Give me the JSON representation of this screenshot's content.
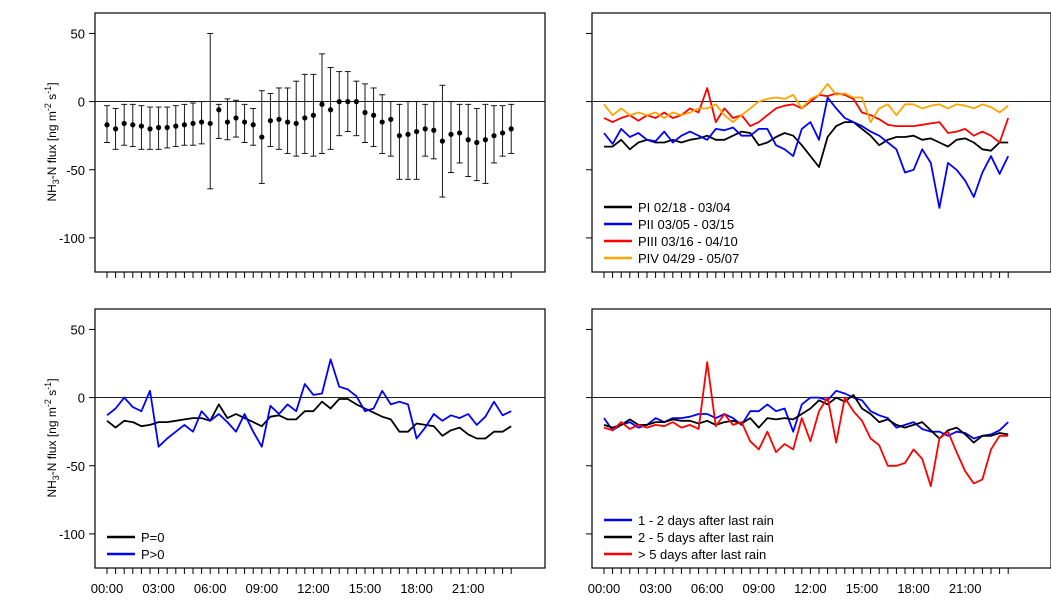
{
  "ylabel_prefix": "NH",
  "ylabel_sub": "3",
  "ylabel_mid": "-N flux [ng m",
  "ylabel_sup1": "-2",
  "ylabel_s": " s",
  "ylabel_sup2": "-1",
  "ylabel_end": "]",
  "chart_data": [
    {
      "type": "scatter",
      "panel": "top-left",
      "x": [
        "00:00",
        "00:30",
        "01:00",
        "01:30",
        "02:00",
        "02:30",
        "03:00",
        "03:30",
        "04:00",
        "04:30",
        "05:00",
        "05:30",
        "06:00",
        "06:30",
        "07:00",
        "07:30",
        "08:00",
        "08:30",
        "09:00",
        "09:30",
        "10:00",
        "10:30",
        "11:00",
        "11:30",
        "12:00",
        "12:30",
        "13:00",
        "13:30",
        "14:00",
        "14:30",
        "15:00",
        "15:30",
        "16:00",
        "16:30",
        "17:00",
        "17:30",
        "18:00",
        "18:30",
        "19:00",
        "19:30",
        "20:00",
        "20:30",
        "21:00",
        "21:30",
        "22:00",
        "22:30",
        "23:00",
        "23:30"
      ],
      "series": [
        {
          "values": [
            -17,
            -20,
            -16,
            -17,
            -18,
            -20,
            -19,
            -19,
            -18,
            -17,
            -16,
            -15,
            -16,
            -6,
            -15,
            -12,
            -15,
            -17,
            -26,
            -14,
            -13,
            -15,
            -16,
            -12,
            -10,
            -2,
            -6,
            0,
            0,
            0,
            -8,
            -10,
            -15,
            -13,
            -25,
            -24,
            -22,
            -20,
            -21,
            -29,
            -24,
            -23,
            -28,
            -30,
            -28,
            -25,
            -23,
            -20
          ],
          "err_low": [
            -30,
            -35,
            -32,
            -33,
            -35,
            -35,
            -35,
            -34,
            -33,
            -32,
            -32,
            -31,
            -64,
            -27,
            -28,
            -26,
            -30,
            -32,
            -60,
            -33,
            -35,
            -38,
            -40,
            -38,
            -40,
            -38,
            -35,
            -25,
            -22,
            -25,
            -30,
            -33,
            -38,
            -40,
            -57,
            -57,
            -57,
            -40,
            -42,
            -70,
            -52,
            -45,
            -55,
            -58,
            -60,
            -45,
            -40,
            -38
          ],
          "err_high": [
            -3,
            -5,
            -2,
            -2,
            -3,
            -4,
            -4,
            -4,
            -3,
            -2,
            -1,
            0,
            50,
            -2,
            2,
            1,
            -2,
            -5,
            8,
            6,
            10,
            10,
            15,
            20,
            20,
            35,
            25,
            22,
            22,
            15,
            13,
            10,
            5,
            0,
            -2,
            0,
            0,
            -2,
            0,
            12,
            0,
            -2,
            -2,
            -5,
            -2,
            -3,
            -3,
            -2
          ]
        }
      ],
      "ylim": [
        -125,
        65
      ],
      "yticks": [
        50,
        0,
        -50,
        -100
      ],
      "reference_line": 0,
      "xtick_labels_visible": false,
      "grid": false
    },
    {
      "type": "line",
      "panel": "top-right",
      "legend_position": "bottom-left",
      "series": [
        {
          "name": "PI 02/18 - 03/04",
          "color": "#000000",
          "values": [
            -33,
            -33,
            -28,
            -35,
            -30,
            -28,
            -30,
            -30,
            -28,
            -30,
            -28,
            -27,
            -25,
            -28,
            -28,
            -25,
            -22,
            -23,
            -32,
            -30,
            -26,
            -23,
            -25,
            -32,
            -40,
            -48,
            -26,
            -18,
            -15,
            -15,
            -20,
            -25,
            -32,
            -28,
            -26,
            -26,
            -25,
            -28,
            -27,
            -30,
            -33,
            -28,
            -27,
            -30,
            -35,
            -36,
            -30,
            -30
          ]
        },
        {
          "name": "PII 03/05 - 03/15",
          "color": "#0000ff",
          "values": [
            -23,
            -31,
            -20,
            -26,
            -23,
            -28,
            -29,
            -22,
            -30,
            -25,
            -22,
            -25,
            -28,
            -20,
            -21,
            -19,
            -25,
            -25,
            -20,
            -20,
            -32,
            -35,
            -40,
            -20,
            -15,
            -28,
            3,
            -5,
            -12,
            -15,
            -18,
            -22,
            -25,
            -30,
            -35,
            -52,
            -50,
            -35,
            -45,
            -78,
            -45,
            -50,
            -58,
            -70,
            -52,
            -40,
            -53,
            -40
          ]
        },
        {
          "name": "PIII 03/16 - 04/10",
          "color": "#ff0000",
          "values": [
            -12,
            -15,
            -12,
            -10,
            -14,
            -10,
            -12,
            -8,
            -12,
            -10,
            -5,
            -8,
            10,
            -15,
            -5,
            -12,
            -10,
            -18,
            -15,
            -10,
            -5,
            -3,
            -2,
            -5,
            0,
            5,
            4,
            6,
            5,
            2,
            -8,
            -10,
            -13,
            -17,
            -18,
            -18,
            -18,
            -17,
            -16,
            -15,
            -23,
            -22,
            -20,
            -25,
            -22,
            -25,
            -30,
            -12
          ]
        },
        {
          "name": "PIV 04/29 - 05/07",
          "color": "#ffa500",
          "values": [
            -2,
            -10,
            -5,
            -10,
            -8,
            -10,
            -8,
            -12,
            -8,
            -10,
            -8,
            -5,
            -5,
            -2,
            -10,
            -15,
            -10,
            -5,
            0,
            2,
            3,
            2,
            5,
            -5,
            2,
            5,
            13,
            5,
            6,
            3,
            3,
            -15,
            -5,
            -2,
            -10,
            -2,
            -2,
            -5,
            -3,
            -2,
            -5,
            -2,
            -3,
            -5,
            -2,
            -4,
            -8,
            -3
          ]
        }
      ],
      "ylim": [
        -125,
        65
      ],
      "reference_line": 0,
      "grid": false
    },
    {
      "type": "line",
      "panel": "bottom-left",
      "legend_position": "bottom-left",
      "xtick_labels": [
        "00:00",
        "03:00",
        "06:00",
        "09:00",
        "12:00",
        "15:00",
        "18:00",
        "21:00"
      ],
      "series": [
        {
          "name": "P=0",
          "color": "#000000",
          "values": [
            -17,
            -22,
            -17,
            -18,
            -21,
            -20,
            -18,
            -18,
            -17,
            -16,
            -15,
            -15,
            -17,
            -5,
            -15,
            -12,
            -15,
            -18,
            -21,
            -14,
            -13,
            -16,
            -16,
            -10,
            -10,
            -3,
            -8,
            -1,
            -1,
            -5,
            -8,
            -11,
            -14,
            -16,
            -25,
            -25,
            -19,
            -20,
            -21,
            -28,
            -24,
            -22,
            -27,
            -30,
            -30,
            -25,
            -25,
            -21
          ]
        },
        {
          "name": "P>0",
          "color": "#0000ff",
          "values": [
            -13,
            -8,
            0,
            -7,
            -10,
            5,
            -36,
            -30,
            -25,
            -20,
            -25,
            -10,
            -17,
            -12,
            -18,
            -25,
            -12,
            -25,
            -36,
            -6,
            -12,
            -5,
            -10,
            10,
            2,
            3,
            28,
            8,
            6,
            1,
            -10,
            -8,
            5,
            -5,
            -3,
            -5,
            -30,
            -22,
            -12,
            -17,
            -13,
            -15,
            -12,
            -20,
            -14,
            -3,
            -13,
            -10
          ]
        }
      ],
      "ylim": [
        -125,
        65
      ],
      "yticks": [
        50,
        0,
        -50,
        -100
      ],
      "reference_line": 0,
      "grid": false
    },
    {
      "type": "line",
      "panel": "bottom-right",
      "legend_position": "bottom-left",
      "xtick_labels": [
        "00:00",
        "03:00",
        "06:00",
        "09:00",
        "12:00",
        "15:00",
        "18:00",
        "21:00"
      ],
      "series": [
        {
          "name": "1 - 2 days after last rain",
          "color": "#0000ff",
          "values": [
            -15,
            -24,
            -20,
            -18,
            -22,
            -20,
            -15,
            -18,
            -15,
            -15,
            -14,
            -12,
            -12,
            -15,
            -12,
            -15,
            -20,
            -10,
            -10,
            -5,
            -10,
            -8,
            -25,
            -5,
            0,
            0,
            -2,
            5,
            3,
            0,
            -2,
            -10,
            -13,
            -15,
            -22,
            -20,
            -18,
            -23,
            -25,
            -25,
            -28,
            -25,
            -26,
            -30,
            -28,
            -27,
            -24,
            -18
          ]
        },
        {
          "name": "2 - 5 days after last rain",
          "color": "#000000",
          "values": [
            -20,
            -22,
            -20,
            -16,
            -20,
            -20,
            -18,
            -18,
            -16,
            -17,
            -17,
            -19,
            -17,
            -20,
            -18,
            -17,
            -19,
            -15,
            -22,
            -15,
            -16,
            -15,
            -16,
            -12,
            -8,
            -2,
            -5,
            0,
            -3,
            2,
            -8,
            -12,
            -18,
            -16,
            -20,
            -22,
            -20,
            -18,
            -24,
            -30,
            -24,
            -22,
            -27,
            -33,
            -28,
            -28,
            -26,
            -27
          ]
        },
        {
          "name": "> 5 days after last rain",
          "color": "#ff0000",
          "values": [
            -22,
            -24,
            -18,
            -23,
            -20,
            -22,
            -20,
            -21,
            -18,
            -22,
            -20,
            -23,
            26,
            -21,
            -12,
            -20,
            -18,
            -32,
            -38,
            -25,
            -40,
            -34,
            -38,
            -15,
            -32,
            -10,
            0,
            -33,
            0,
            -10,
            -17,
            -30,
            -35,
            -50,
            -50,
            -48,
            -38,
            -45,
            -65,
            -30,
            -25,
            -40,
            -54,
            -63,
            -60,
            -38,
            -28,
            -28
          ]
        }
      ],
      "ylim": [
        -125,
        65
      ],
      "reference_line": 0,
      "grid": false
    }
  ]
}
